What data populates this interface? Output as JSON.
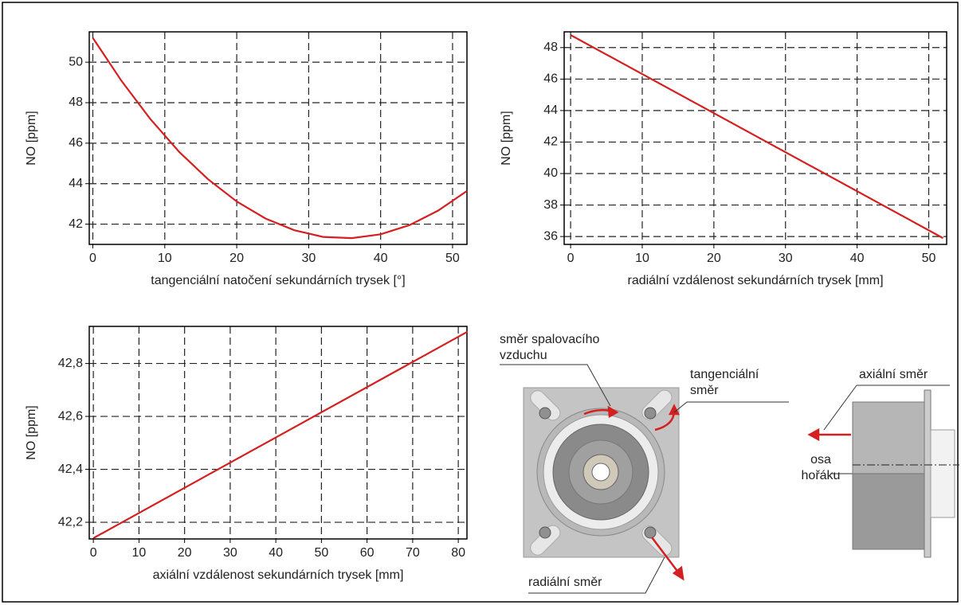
{
  "chart_data": [
    {
      "type": "line",
      "x_label": "tangenciální natočení sekundárních trysek [°]",
      "y_label": "NO [ppm]",
      "x": [
        0,
        4,
        8,
        12,
        16,
        20,
        24,
        28,
        32,
        36,
        40,
        44,
        48,
        52
      ],
      "series": [
        {
          "color": "#d42020",
          "values": [
            51.2,
            49.07,
            47.19,
            45.57,
            44.22,
            43.12,
            42.28,
            41.7,
            41.37,
            41.31,
            41.5,
            41.95,
            42.67,
            43.64
          ]
        }
      ],
      "xlim": [
        -0.5,
        52
      ],
      "ylim": [
        41,
        51.5
      ],
      "xticks": [
        0,
        10,
        20,
        30,
        40,
        50
      ],
      "yticks": [
        42,
        44,
        46,
        48,
        50
      ],
      "grid": true
    },
    {
      "type": "line",
      "x_label": "radiální vzdálenost sekundárních trysek [mm]",
      "y_label": "NO [ppm]",
      "x": [
        0,
        52
      ],
      "series": [
        {
          "color": "#d42020",
          "values": [
            48.8,
            35.9
          ]
        }
      ],
      "xlim": [
        -0.9,
        52.5
      ],
      "ylim": [
        35.5,
        49
      ],
      "xticks": [
        0,
        10,
        20,
        30,
        40,
        50
      ],
      "yticks": [
        36,
        38,
        40,
        42,
        44,
        46,
        48
      ],
      "grid": true
    },
    {
      "type": "line",
      "x_label": "axiální vzdálenost sekundárních trysek [mm]",
      "y_label": "NO [ppm]",
      "x": [
        0,
        82
      ],
      "series": [
        {
          "color": "#d42020",
          "values": [
            42.14,
            42.92
          ]
        }
      ],
      "xlim": [
        -0.9,
        81.9
      ],
      "ylim": [
        42.137,
        42.94
      ],
      "xticks": [
        0,
        10,
        20,
        30,
        40,
        50,
        60,
        70,
        80
      ],
      "yticks": [
        {
          "value": 42.2,
          "label": "42,2"
        },
        {
          "value": 42.4,
          "label": "42,4"
        },
        {
          "value": 42.6,
          "label": "42,6"
        },
        {
          "value": 42.8,
          "label": "42,8"
        }
      ],
      "grid": true
    }
  ],
  "diagram": {
    "labels": {
      "air_direction": [
        "směr spalovacího",
        "vzduchu"
      ],
      "tangential": [
        "tangenciální",
        "směr"
      ],
      "radial": "radiální směr",
      "axial": "axiální směr",
      "axis": [
        "osa",
        "hořáku"
      ]
    }
  }
}
